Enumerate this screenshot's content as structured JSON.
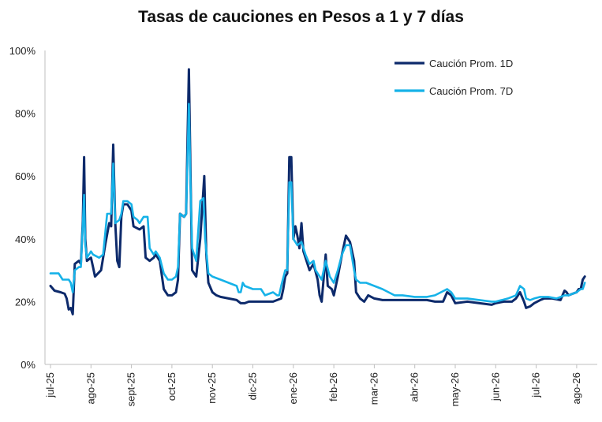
{
  "chart_data": {
    "type": "line",
    "title": "Tasas de cauciones en Pesos a 1 y 7 días",
    "xlabel": "",
    "ylabel": "",
    "ylim": [
      0,
      100
    ],
    "y_ticks": [
      "0%",
      "20%",
      "40%",
      "60%",
      "80%",
      "100%"
    ],
    "x_ticks": [
      "jul-25",
      "ago-25",
      "sept-25",
      "oct-25",
      "nov-25",
      "dic-25",
      "ene-26",
      "feb-26",
      "mar-26",
      "abr-26",
      "may-26",
      "jun-26",
      "jul-26",
      "ago-26"
    ],
    "grid": false,
    "legend": "top-right",
    "colors": {
      "series1": "#0d2a6b",
      "series2": "#16b2e8"
    },
    "series": [
      {
        "name": "Caución Prom. 1D",
        "points": [
          [
            0,
            25
          ],
          [
            0.1,
            23.5
          ],
          [
            0.25,
            23
          ],
          [
            0.35,
            22.5
          ],
          [
            0.4,
            21
          ],
          [
            0.45,
            17.5
          ],
          [
            0.5,
            18
          ],
          [
            0.55,
            16
          ],
          [
            0.6,
            32
          ],
          [
            0.7,
            33
          ],
          [
            0.75,
            32
          ],
          [
            0.8,
            46
          ],
          [
            0.83,
            66
          ],
          [
            0.86,
            40
          ],
          [
            0.9,
            33
          ],
          [
            1.0,
            34
          ],
          [
            1.05,
            31
          ],
          [
            1.1,
            28
          ],
          [
            1.25,
            30
          ],
          [
            1.35,
            38
          ],
          [
            1.45,
            45
          ],
          [
            1.5,
            44
          ],
          [
            1.55,
            70
          ],
          [
            1.6,
            45
          ],
          [
            1.65,
            33
          ],
          [
            1.7,
            31
          ],
          [
            1.75,
            47
          ],
          [
            1.8,
            51
          ],
          [
            1.9,
            51
          ],
          [
            2.0,
            49
          ],
          [
            2.05,
            44
          ],
          [
            2.2,
            43
          ],
          [
            2.3,
            44
          ],
          [
            2.35,
            34
          ],
          [
            2.45,
            33
          ],
          [
            2.55,
            34
          ],
          [
            2.6,
            35
          ],
          [
            2.7,
            33
          ],
          [
            2.8,
            24
          ],
          [
            2.9,
            22
          ],
          [
            3.0,
            22
          ],
          [
            3.1,
            23
          ],
          [
            3.15,
            27
          ],
          [
            3.2,
            48
          ],
          [
            3.3,
            47
          ],
          [
            3.35,
            48
          ],
          [
            3.42,
            94
          ],
          [
            3.46,
            60
          ],
          [
            3.5,
            30
          ],
          [
            3.6,
            28
          ],
          [
            3.7,
            40
          ],
          [
            3.8,
            60
          ],
          [
            3.85,
            35
          ],
          [
            3.9,
            26
          ],
          [
            4.0,
            23
          ],
          [
            4.1,
            22
          ],
          [
            4.2,
            21.5
          ],
          [
            4.4,
            21
          ],
          [
            4.6,
            20.5
          ],
          [
            4.7,
            19.5
          ],
          [
            4.8,
            19.5
          ],
          [
            4.9,
            20
          ],
          [
            5.1,
            20
          ],
          [
            5.3,
            20
          ],
          [
            5.5,
            20
          ],
          [
            5.6,
            20.5
          ],
          [
            5.7,
            21
          ],
          [
            5.75,
            24
          ],
          [
            5.8,
            28
          ],
          [
            5.85,
            29
          ],
          [
            5.9,
            66
          ],
          [
            5.95,
            66
          ],
          [
            6.0,
            40
          ],
          [
            6.05,
            44
          ],
          [
            6.1,
            41
          ],
          [
            6.15,
            37
          ],
          [
            6.2,
            45
          ],
          [
            6.25,
            36
          ],
          [
            6.3,
            34
          ],
          [
            6.4,
            30
          ],
          [
            6.5,
            32
          ],
          [
            6.6,
            27
          ],
          [
            6.65,
            22
          ],
          [
            6.7,
            20
          ],
          [
            6.8,
            35
          ],
          [
            6.85,
            25
          ],
          [
            6.95,
            24
          ],
          [
            7.0,
            22
          ],
          [
            7.1,
            28
          ],
          [
            7.2,
            35
          ],
          [
            7.3,
            41
          ],
          [
            7.4,
            39
          ],
          [
            7.5,
            33
          ],
          [
            7.55,
            23
          ],
          [
            7.65,
            21
          ],
          [
            7.75,
            20
          ],
          [
            7.85,
            22
          ],
          [
            8.0,
            21
          ],
          [
            8.2,
            20.5
          ],
          [
            8.5,
            20.5
          ],
          [
            9.0,
            20.5
          ],
          [
            9.3,
            20.5
          ],
          [
            9.5,
            20
          ],
          [
            9.7,
            20
          ],
          [
            9.8,
            23
          ],
          [
            9.9,
            22
          ],
          [
            10.0,
            19.5
          ],
          [
            10.3,
            20
          ],
          [
            10.6,
            19.5
          ],
          [
            10.9,
            19
          ],
          [
            11.0,
            19.5
          ],
          [
            11.2,
            20
          ],
          [
            11.4,
            20
          ],
          [
            11.5,
            21
          ],
          [
            11.6,
            23
          ],
          [
            11.7,
            20
          ],
          [
            11.75,
            18
          ],
          [
            11.85,
            18.5
          ],
          [
            11.95,
            19.5
          ],
          [
            12.1,
            20.5
          ],
          [
            12.2,
            21
          ],
          [
            12.4,
            21
          ],
          [
            12.6,
            20.5
          ],
          [
            12.7,
            23.5
          ],
          [
            12.75,
            23
          ],
          [
            12.8,
            22
          ],
          [
            12.9,
            22.5
          ],
          [
            13.0,
            23
          ],
          [
            13.05,
            24
          ],
          [
            13.1,
            24
          ],
          [
            13.15,
            27
          ],
          [
            13.2,
            28
          ]
        ]
      },
      {
        "name": "Caución Prom. 7D",
        "points": [
          [
            0,
            29
          ],
          [
            0.1,
            29
          ],
          [
            0.2,
            29
          ],
          [
            0.3,
            27
          ],
          [
            0.45,
            27
          ],
          [
            0.5,
            26
          ],
          [
            0.55,
            23
          ],
          [
            0.6,
            30
          ],
          [
            0.7,
            31
          ],
          [
            0.75,
            31
          ],
          [
            0.8,
            45
          ],
          [
            0.83,
            54
          ],
          [
            0.86,
            38
          ],
          [
            0.9,
            34
          ],
          [
            1.0,
            36
          ],
          [
            1.05,
            35
          ],
          [
            1.2,
            34
          ],
          [
            1.3,
            35
          ],
          [
            1.4,
            48
          ],
          [
            1.5,
            48
          ],
          [
            1.55,
            64
          ],
          [
            1.6,
            45
          ],
          [
            1.7,
            46
          ],
          [
            1.75,
            48
          ],
          [
            1.8,
            52
          ],
          [
            1.9,
            52
          ],
          [
            2.0,
            51
          ],
          [
            2.05,
            47
          ],
          [
            2.15,
            46
          ],
          [
            2.2,
            45
          ],
          [
            2.3,
            47
          ],
          [
            2.4,
            47
          ],
          [
            2.45,
            37
          ],
          [
            2.55,
            35
          ],
          [
            2.6,
            36
          ],
          [
            2.7,
            34
          ],
          [
            2.8,
            29
          ],
          [
            2.9,
            27
          ],
          [
            3.0,
            27
          ],
          [
            3.1,
            28
          ],
          [
            3.15,
            31
          ],
          [
            3.2,
            48
          ],
          [
            3.3,
            47
          ],
          [
            3.35,
            48
          ],
          [
            3.42,
            83
          ],
          [
            3.46,
            57
          ],
          [
            3.5,
            37
          ],
          [
            3.6,
            33
          ],
          [
            3.7,
            52
          ],
          [
            3.78,
            53
          ],
          [
            3.82,
            40
          ],
          [
            3.9,
            29
          ],
          [
            4.0,
            28
          ],
          [
            4.2,
            27
          ],
          [
            4.4,
            26
          ],
          [
            4.6,
            25
          ],
          [
            4.65,
            23
          ],
          [
            4.7,
            23
          ],
          [
            4.75,
            26
          ],
          [
            4.8,
            25
          ],
          [
            5.0,
            24
          ],
          [
            5.2,
            24
          ],
          [
            5.3,
            22
          ],
          [
            5.5,
            23
          ],
          [
            5.6,
            22
          ],
          [
            5.65,
            22
          ],
          [
            5.7,
            25
          ],
          [
            5.8,
            30
          ],
          [
            5.85,
            30
          ],
          [
            5.9,
            58
          ],
          [
            5.95,
            58
          ],
          [
            6.0,
            40
          ],
          [
            6.1,
            38
          ],
          [
            6.2,
            39
          ],
          [
            6.3,
            35
          ],
          [
            6.4,
            32
          ],
          [
            6.5,
            33
          ],
          [
            6.55,
            30
          ],
          [
            6.6,
            29
          ],
          [
            6.7,
            27
          ],
          [
            6.8,
            33
          ],
          [
            6.9,
            28
          ],
          [
            7.0,
            26
          ],
          [
            7.1,
            30
          ],
          [
            7.2,
            35
          ],
          [
            7.3,
            38
          ],
          [
            7.4,
            38
          ],
          [
            7.5,
            30
          ],
          [
            7.55,
            27
          ],
          [
            7.65,
            26
          ],
          [
            7.8,
            26
          ],
          [
            8.0,
            25
          ],
          [
            8.2,
            24
          ],
          [
            8.5,
            22
          ],
          [
            8.7,
            22
          ],
          [
            9.0,
            21.5
          ],
          [
            9.3,
            21.5
          ],
          [
            9.5,
            22
          ],
          [
            9.8,
            24
          ],
          [
            9.9,
            23
          ],
          [
            10.0,
            21
          ],
          [
            10.3,
            21
          ],
          [
            10.6,
            20.5
          ],
          [
            10.9,
            20
          ],
          [
            11.0,
            20
          ],
          [
            11.3,
            21
          ],
          [
            11.5,
            22
          ],
          [
            11.6,
            25
          ],
          [
            11.7,
            24
          ],
          [
            11.75,
            21
          ],
          [
            11.85,
            20.5
          ],
          [
            11.95,
            21
          ],
          [
            12.1,
            21.5
          ],
          [
            12.3,
            21.5
          ],
          [
            12.5,
            21
          ],
          [
            12.7,
            22
          ],
          [
            12.8,
            22
          ],
          [
            12.9,
            22.5
          ],
          [
            13.0,
            23
          ],
          [
            13.1,
            24
          ],
          [
            13.15,
            24
          ],
          [
            13.2,
            26
          ]
        ]
      }
    ]
  }
}
